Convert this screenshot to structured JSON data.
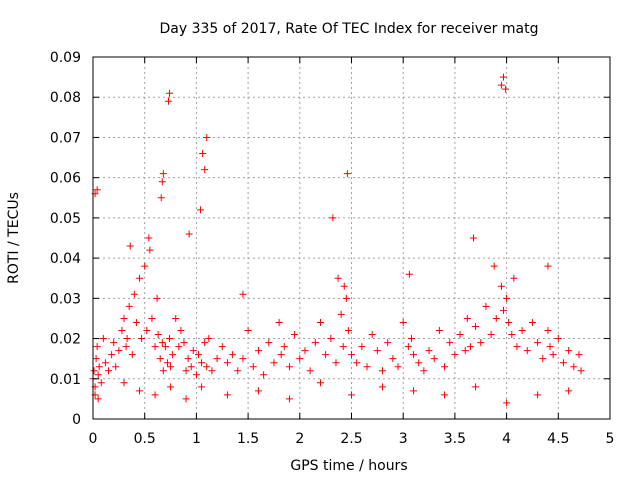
{
  "chart_data": {
    "type": "scatter",
    "title": "Day 335 of 2017, Rate Of TEC Index for receiver matg",
    "xlabel": "GPS time / hours",
    "ylabel": "ROTI / TECUs",
    "xlim": [
      0,
      5
    ],
    "ylim": [
      0,
      0.09
    ],
    "x_ticks": [
      0,
      0.5,
      1,
      1.5,
      2,
      2.5,
      3,
      3.5,
      4,
      4.5,
      5
    ],
    "x_tick_labels": [
      "0",
      "0.5",
      "1",
      "1.5",
      "2",
      "2.5",
      "3",
      "3.5",
      "4",
      "4.5",
      "5"
    ],
    "y_ticks": [
      0,
      0.01,
      0.02,
      0.03,
      0.04,
      0.05,
      0.06,
      0.07,
      0.08,
      0.09
    ],
    "y_tick_labels": [
      "0",
      "0.01",
      "0.02",
      "0.03",
      "0.04",
      "0.05",
      "0.06",
      "0.07",
      "0.08",
      "0.09"
    ],
    "grid": true,
    "marker": "+",
    "color": "#ff0000",
    "series": [
      {
        "name": "ROTI",
        "x": [
          0.0,
          0.01,
          0.02,
          0.03,
          0.04,
          0.05,
          0.06,
          0.08,
          0.1,
          0.12,
          0.15,
          0.18,
          0.2,
          0.22,
          0.25,
          0.28,
          0.3,
          0.32,
          0.33,
          0.35,
          0.38,
          0.4,
          0.42,
          0.45,
          0.47,
          0.5,
          0.52,
          0.55,
          0.57,
          0.6,
          0.62,
          0.63,
          0.65,
          0.67,
          0.68,
          0.7,
          0.72,
          0.74,
          0.75,
          0.77,
          0.8,
          0.83,
          0.85,
          0.88,
          0.9,
          0.92,
          0.95,
          0.97,
          1.0,
          1.02,
          1.05,
          1.08,
          1.1,
          1.12,
          1.15,
          1.2,
          1.25,
          1.3,
          1.35,
          1.4,
          1.45,
          1.5,
          1.55,
          1.6,
          1.65,
          1.7,
          1.75,
          1.8,
          1.82,
          1.85,
          1.9,
          1.95,
          2.0,
          2.05,
          2.1,
          2.15,
          2.2,
          2.25,
          2.3,
          2.35,
          2.4,
          2.42,
          2.45,
          2.47,
          2.5,
          2.55,
          2.6,
          2.65,
          2.7,
          2.75,
          2.8,
          2.85,
          2.9,
          2.95,
          3.0,
          3.05,
          3.08,
          3.1,
          3.15,
          3.2,
          3.25,
          3.3,
          3.35,
          3.4,
          3.45,
          3.5,
          3.55,
          3.6,
          3.62,
          3.65,
          3.7,
          3.75,
          3.8,
          3.85,
          3.9,
          3.95,
          3.97,
          4.0,
          4.02,
          4.05,
          4.1,
          4.15,
          4.2,
          4.25,
          4.3,
          4.35,
          4.4,
          4.42,
          4.45,
          4.5,
          4.55,
          4.6,
          4.65,
          4.7,
          4.72,
          0.02,
          0.05,
          0.3,
          0.45,
          0.6,
          0.75,
          0.9,
          1.05,
          1.3,
          1.6,
          1.9,
          2.2,
          2.5,
          2.8,
          3.1,
          3.4,
          3.7,
          4.0,
          4.3,
          4.6,
          0.36,
          0.54,
          0.66,
          0.93,
          1.04,
          1.45,
          2.37,
          2.43,
          3.06,
          3.68,
          3.88,
          4.07,
          4.4,
          0.73,
          0.74,
          1.1,
          2.46,
          3.95,
          3.97,
          3.99,
          0.04,
          0.02,
          0.67,
          0.68,
          1.08,
          1.06,
          2.32
        ],
        "y": [
          0.01,
          0.012,
          0.008,
          0.015,
          0.018,
          0.011,
          0.013,
          0.009,
          0.02,
          0.014,
          0.012,
          0.016,
          0.019,
          0.013,
          0.017,
          0.022,
          0.025,
          0.018,
          0.02,
          0.028,
          0.016,
          0.031,
          0.024,
          0.035,
          0.02,
          0.038,
          0.022,
          0.042,
          0.025,
          0.018,
          0.03,
          0.021,
          0.015,
          0.019,
          0.012,
          0.018,
          0.014,
          0.02,
          0.013,
          0.016,
          0.025,
          0.018,
          0.022,
          0.019,
          0.012,
          0.015,
          0.013,
          0.017,
          0.011,
          0.016,
          0.014,
          0.019,
          0.013,
          0.02,
          0.012,
          0.015,
          0.018,
          0.014,
          0.016,
          0.012,
          0.015,
          0.022,
          0.013,
          0.017,
          0.011,
          0.019,
          0.014,
          0.024,
          0.016,
          0.018,
          0.013,
          0.021,
          0.015,
          0.017,
          0.012,
          0.019,
          0.024,
          0.016,
          0.02,
          0.014,
          0.026,
          0.018,
          0.03,
          0.022,
          0.016,
          0.014,
          0.018,
          0.013,
          0.021,
          0.017,
          0.012,
          0.019,
          0.015,
          0.013,
          0.024,
          0.018,
          0.02,
          0.016,
          0.014,
          0.012,
          0.017,
          0.015,
          0.022,
          0.013,
          0.019,
          0.016,
          0.021,
          0.017,
          0.025,
          0.018,
          0.023,
          0.019,
          0.028,
          0.021,
          0.025,
          0.033,
          0.027,
          0.03,
          0.024,
          0.021,
          0.018,
          0.022,
          0.017,
          0.024,
          0.019,
          0.015,
          0.022,
          0.018,
          0.016,
          0.02,
          0.014,
          0.017,
          0.013,
          0.016,
          0.012,
          0.006,
          0.005,
          0.009,
          0.007,
          0.006,
          0.008,
          0.005,
          0.008,
          0.006,
          0.007,
          0.005,
          0.009,
          0.006,
          0.008,
          0.007,
          0.006,
          0.008,
          0.004,
          0.006,
          0.007,
          0.043,
          0.045,
          0.055,
          0.046,
          0.052,
          0.031,
          0.035,
          0.033,
          0.036,
          0.045,
          0.038,
          0.035,
          0.038,
          0.079,
          0.081,
          0.07,
          0.061,
          0.083,
          0.085,
          0.082,
          0.057,
          0.056,
          0.059,
          0.061,
          0.062,
          0.066,
          0.05
        ]
      }
    ]
  }
}
